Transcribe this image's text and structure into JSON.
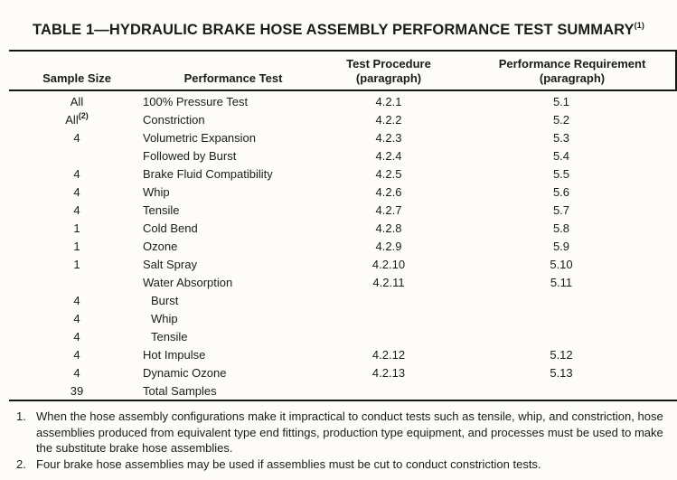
{
  "title": {
    "text": "TABLE 1—HYDRAULIC BRAKE HOSE ASSEMBLY PERFORMANCE TEST SUMMARY",
    "sup": "(1)"
  },
  "colors": {
    "background": "#fdfcf8",
    "text": "#1b1b1b",
    "rule": "#161616"
  },
  "table": {
    "columns": [
      {
        "line1": "Sample Size",
        "line2": ""
      },
      {
        "line1": "Performance Test",
        "line2": ""
      },
      {
        "line1": "Test Procedure",
        "line2": "(paragraph)"
      },
      {
        "line1": "Performance Requirement",
        "line2": "(paragraph)"
      }
    ],
    "rows": [
      {
        "sample": "All",
        "sample_sup": "",
        "test": "100% Pressure Test",
        "indent": false,
        "procedure": "4.2.1",
        "requirement": "5.1"
      },
      {
        "sample": "All",
        "sample_sup": "(2)",
        "test": "Constriction",
        "indent": false,
        "procedure": "4.2.2",
        "requirement": "5.2"
      },
      {
        "sample": "4",
        "sample_sup": "",
        "test": "Volumetric Expansion",
        "indent": false,
        "procedure": "4.2.3",
        "requirement": "5.3"
      },
      {
        "sample": "",
        "sample_sup": "",
        "test": "Followed by Burst",
        "indent": false,
        "procedure": "4.2.4",
        "requirement": "5.4"
      },
      {
        "sample": "4",
        "sample_sup": "",
        "test": "Brake Fluid Compatibility",
        "indent": false,
        "procedure": "4.2.5",
        "requirement": "5.5"
      },
      {
        "sample": "4",
        "sample_sup": "",
        "test": "Whip",
        "indent": false,
        "procedure": "4.2.6",
        "requirement": "5.6"
      },
      {
        "sample": "4",
        "sample_sup": "",
        "test": "Tensile",
        "indent": false,
        "procedure": "4.2.7",
        "requirement": "5.7"
      },
      {
        "sample": "1",
        "sample_sup": "",
        "test": "Cold Bend",
        "indent": false,
        "procedure": "4.2.8",
        "requirement": "5.8"
      },
      {
        "sample": "1",
        "sample_sup": "",
        "test": "Ozone",
        "indent": false,
        "procedure": "4.2.9",
        "requirement": "5.9"
      },
      {
        "sample": "1",
        "sample_sup": "",
        "test": "Salt Spray",
        "indent": false,
        "procedure": "4.2.10",
        "requirement": "5.10"
      },
      {
        "sample": "",
        "sample_sup": "",
        "test": "Water Absorption",
        "indent": false,
        "procedure": "4.2.11",
        "requirement": "5.11"
      },
      {
        "sample": "4",
        "sample_sup": "",
        "test": "Burst",
        "indent": true,
        "procedure": "",
        "requirement": ""
      },
      {
        "sample": "4",
        "sample_sup": "",
        "test": "Whip",
        "indent": true,
        "procedure": "",
        "requirement": ""
      },
      {
        "sample": "4",
        "sample_sup": "",
        "test": "Tensile",
        "indent": true,
        "procedure": "",
        "requirement": ""
      },
      {
        "sample": "4",
        "sample_sup": "",
        "test": "Hot Impulse",
        "indent": false,
        "procedure": "4.2.12",
        "requirement": "5.12"
      },
      {
        "sample": "4",
        "sample_sup": "",
        "test": "Dynamic Ozone",
        "indent": false,
        "procedure": "4.2.13",
        "requirement": "5.13"
      },
      {
        "sample": "39",
        "sample_sup": "",
        "test": "Total Samples",
        "indent": false,
        "procedure": "",
        "requirement": ""
      }
    ]
  },
  "footnotes": [
    {
      "num": "1.",
      "text": "When the hose assembly configurations make it impractical to conduct tests such as tensile, whip, and constriction, hose assemblies produced from equivalent type end fittings, production type equipment, and processes must be used to make the substitute brake hose assemblies."
    },
    {
      "num": "2.",
      "text": "Four brake hose assemblies may be used if assemblies must be cut to conduct constriction tests."
    }
  ]
}
